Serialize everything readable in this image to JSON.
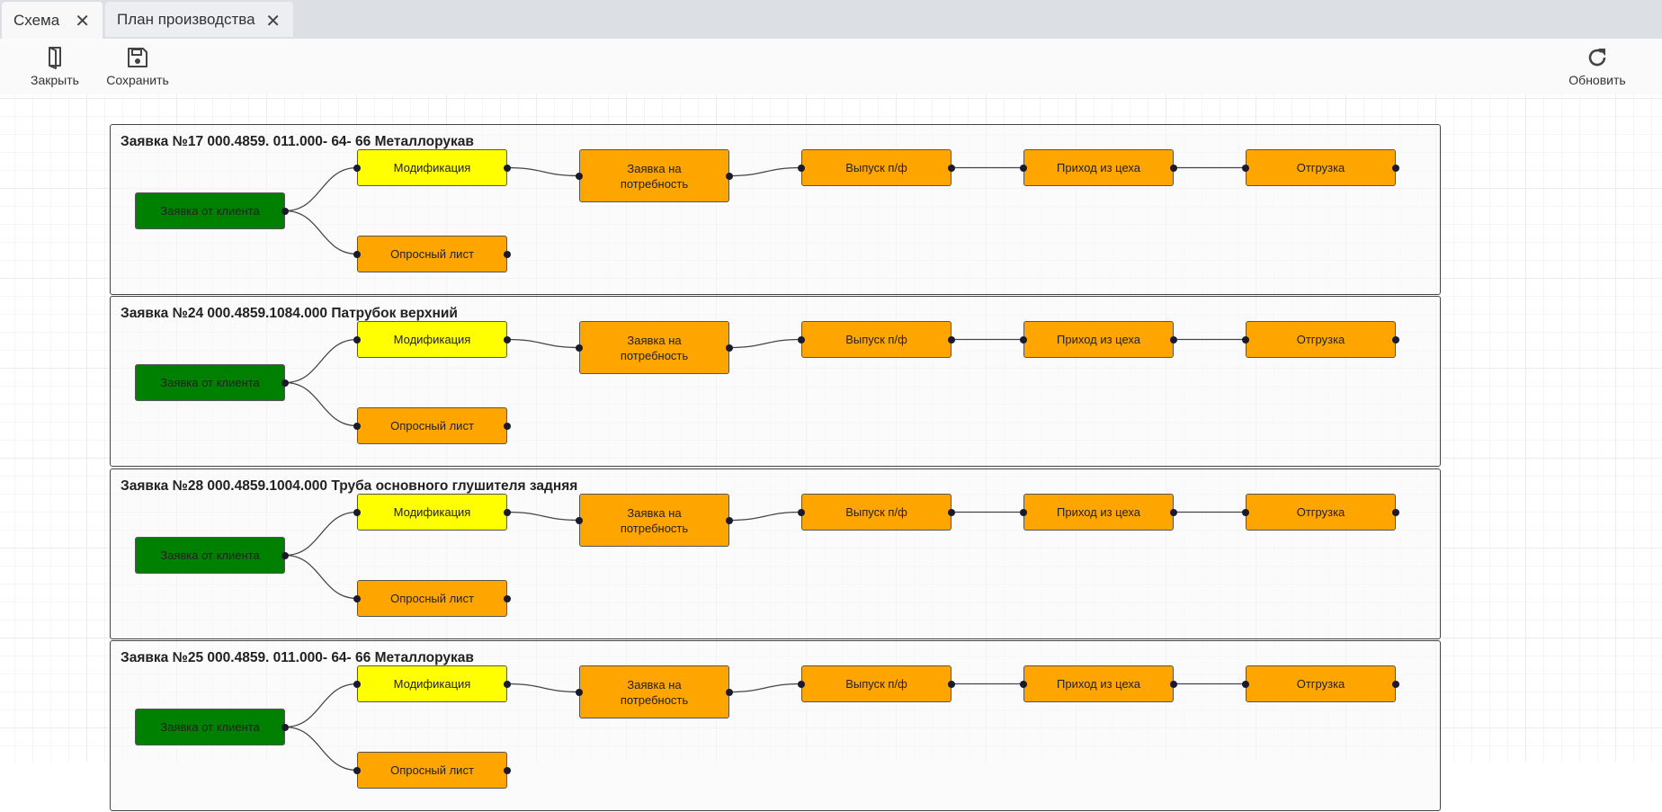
{
  "tabs": [
    {
      "label": "Схема",
      "active": true
    },
    {
      "label": "План производства",
      "active": false
    }
  ],
  "toolbar": {
    "close_label": "Закрыть",
    "save_label": "Сохранить",
    "refresh_label": "Обновить"
  },
  "colors": {
    "client": "#008000",
    "modification": "#ffff00",
    "step": "#ffa500"
  },
  "groups": [
    {
      "title": "Заявка №17 000.4859. 011.000- 64- 66 Металлорукав"
    },
    {
      "title": "Заявка №24 000.4859.1084.000 Патрубок верхний"
    },
    {
      "title": "Заявка №28 000.4859.1004.000 Труба основного глушителя задняя"
    },
    {
      "title": "Заявка №25 000.4859. 011.000- 64- 66 Металлорукав"
    }
  ],
  "nodes": [
    {
      "id": "client",
      "label": "Заявка от клиента",
      "color": "#008000"
    },
    {
      "id": "mod",
      "label": "Модификация",
      "color": "#ffff00"
    },
    {
      "id": "survey",
      "label": "Опросный лист",
      "color": "#ffa500"
    },
    {
      "id": "need",
      "label": "Заявка на потребность",
      "color": "#ffa500"
    },
    {
      "id": "release",
      "label": "Выпуск п/ф",
      "color": "#ffa500"
    },
    {
      "id": "receipt",
      "label": "Приход из цеха",
      "color": "#ffa500"
    },
    {
      "id": "ship",
      "label": "Отгрузка",
      "color": "#ffa500"
    }
  ],
  "edges": [
    [
      "client",
      "mod"
    ],
    [
      "client",
      "survey"
    ],
    [
      "mod",
      "need"
    ],
    [
      "need",
      "release"
    ],
    [
      "release",
      "receipt"
    ],
    [
      "receipt",
      "ship"
    ]
  ]
}
